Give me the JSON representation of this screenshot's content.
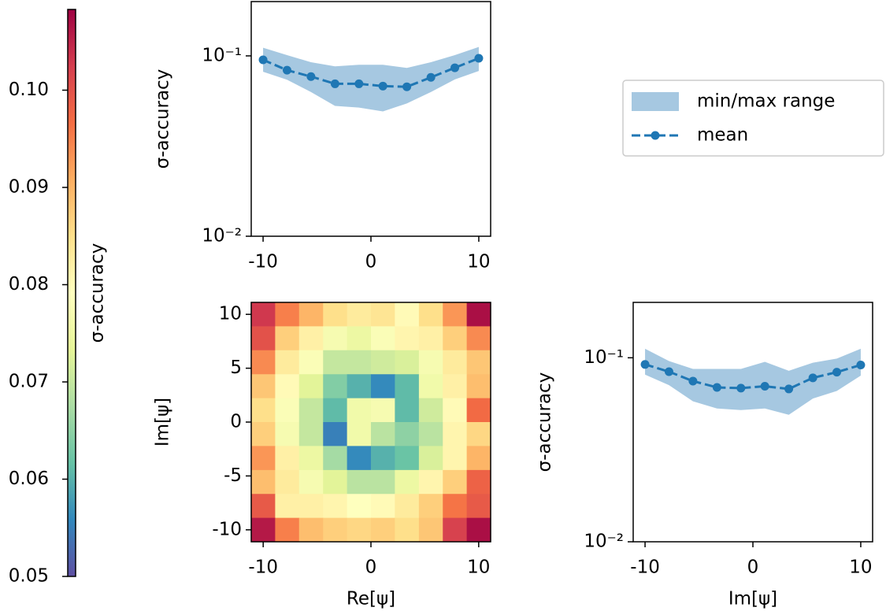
{
  "chart_data": [
    {
      "type": "line",
      "log_y": true,
      "ylabel": "σ-accuracy",
      "x": [
        -10,
        -7.78,
        -5.56,
        -3.33,
        -1.11,
        1.11,
        3.33,
        5.56,
        7.78,
        10
      ],
      "series": [
        {
          "name": "min/max range",
          "color": "#a6c8e1",
          "lower": [
            0.0816,
            0.0737,
            0.063,
            0.0528,
            0.0517,
            0.0492,
            0.0545,
            0.063,
            0.074,
            0.0825
          ],
          "upper": [
            0.111,
            0.101,
            0.0922,
            0.0875,
            0.0893,
            0.0893,
            0.0857,
            0.0922,
            0.101,
            0.112
          ]
        },
        {
          "name": "mean",
          "color": "#1f77b4",
          "values": [
            0.0951,
            0.0833,
            0.0768,
            0.07,
            0.07,
            0.068,
            0.0674,
            0.076,
            0.0859,
            0.097
          ]
        }
      ],
      "xlim": [
        -11.1,
        11.1
      ],
      "xticks": [
        -10,
        0,
        10
      ],
      "ylim": [
        0.01,
        0.2
      ],
      "yticks": [
        {
          "value": 0.01,
          "label": "10⁻²"
        },
        {
          "value": 0.1,
          "label": "10⁻¹"
        }
      ],
      "legend": "right"
    },
    {
      "type": "heatmap",
      "xlabel": "Re[ψ]",
      "ylabel": "Im[ψ]",
      "x": [
        -10,
        -7.78,
        -5.56,
        -3.33,
        -1.11,
        1.11,
        3.33,
        5.56,
        7.78,
        10
      ],
      "y": [
        10,
        7.78,
        5.56,
        3.33,
        1.11,
        -1.11,
        -3.33,
        -5.56,
        -7.78,
        -10
      ],
      "z": [
        [
          0.103,
          0.095,
          0.09,
          0.085,
          0.083,
          0.084,
          0.08,
          0.085,
          0.093,
          0.107
        ],
        [
          0.1,
          0.087,
          0.082,
          0.077,
          0.075,
          0.078,
          0.081,
          0.082,
          0.087,
          0.094
        ],
        [
          0.094,
          0.083,
          0.078,
          0.07,
          0.07,
          0.071,
          0.072,
          0.077,
          0.083,
          0.088
        ],
        [
          0.088,
          0.08,
          0.073,
          0.064,
          0.06,
          0.056,
          0.061,
          0.076,
          0.082,
          0.089
        ],
        [
          0.085,
          0.078,
          0.07,
          0.061,
          0.076,
          0.077,
          0.061,
          0.071,
          0.08,
          0.097
        ],
        [
          0.087,
          0.077,
          0.07,
          0.055,
          0.076,
          0.069,
          0.065,
          0.069,
          0.081,
          0.086
        ],
        [
          0.093,
          0.082,
          0.075,
          0.067,
          0.056,
          0.06,
          0.062,
          0.072,
          0.081,
          0.09
        ],
        [
          0.089,
          0.083,
          0.077,
          0.073,
          0.069,
          0.069,
          0.075,
          0.081,
          0.087,
          0.098
        ],
        [
          0.099,
          0.082,
          0.082,
          0.081,
          0.079,
          0.08,
          0.083,
          0.087,
          0.096,
          0.099
        ],
        [
          0.106,
          0.095,
          0.089,
          0.087,
          0.086,
          0.087,
          0.085,
          0.088,
          0.102,
          0.107
        ]
      ],
      "xlim": [
        -11.11,
        11.11
      ],
      "xticks": [
        -10,
        0,
        10
      ],
      "ylim": [
        -11.11,
        11.11
      ],
      "yticks": [
        -10,
        -5,
        0,
        5,
        10
      ],
      "colormap": [
        "#5e4fa2",
        "#3288bd",
        "#66c2a5",
        "#abdda4",
        "#e6f598",
        "#ffffbf",
        "#fee08b",
        "#fdae61",
        "#f46d43",
        "#d53e4f",
        "#9e0142"
      ],
      "colorbar": {
        "label": "σ-accuracy",
        "lim": [
          0.05,
          0.1083
        ],
        "ticks": [
          0.05,
          0.06,
          0.07,
          0.08,
          0.09,
          {
            "value": 0.1,
            "label": "0.10"
          }
        ]
      }
    },
    {
      "type": "line",
      "log_y": true,
      "xlabel": "Im[ψ]",
      "ylabel": "σ-accuracy",
      "x": [
        -10,
        -7.78,
        -5.56,
        -3.33,
        -1.11,
        1.11,
        3.33,
        5.56,
        7.78,
        10
      ],
      "series": [
        {
          "name": "min/max range",
          "color": "#a6c8e1",
          "lower": [
            0.081,
            0.071,
            0.058,
            0.053,
            0.052,
            0.053,
            0.049,
            0.06,
            0.066,
            0.08
          ],
          "upper": [
            0.112,
            0.096,
            0.087,
            0.087,
            0.087,
            0.095,
            0.085,
            0.094,
            0.099,
            0.112
          ]
        },
        {
          "name": "mean",
          "color": "#1f77b4",
          "values": [
            0.092,
            0.084,
            0.0747,
            0.069,
            0.0684,
            0.07,
            0.0677,
            0.0778,
            0.0835,
            0.0914
          ]
        }
      ],
      "xlim": [
        -11.1,
        11.1
      ],
      "xticks": [
        -10,
        0,
        10
      ],
      "ylim": [
        0.01,
        0.2
      ],
      "yticks": [
        {
          "value": 0.01,
          "label": "10⁻²"
        },
        {
          "value": 0.1,
          "label": "10⁻¹"
        }
      ]
    }
  ]
}
